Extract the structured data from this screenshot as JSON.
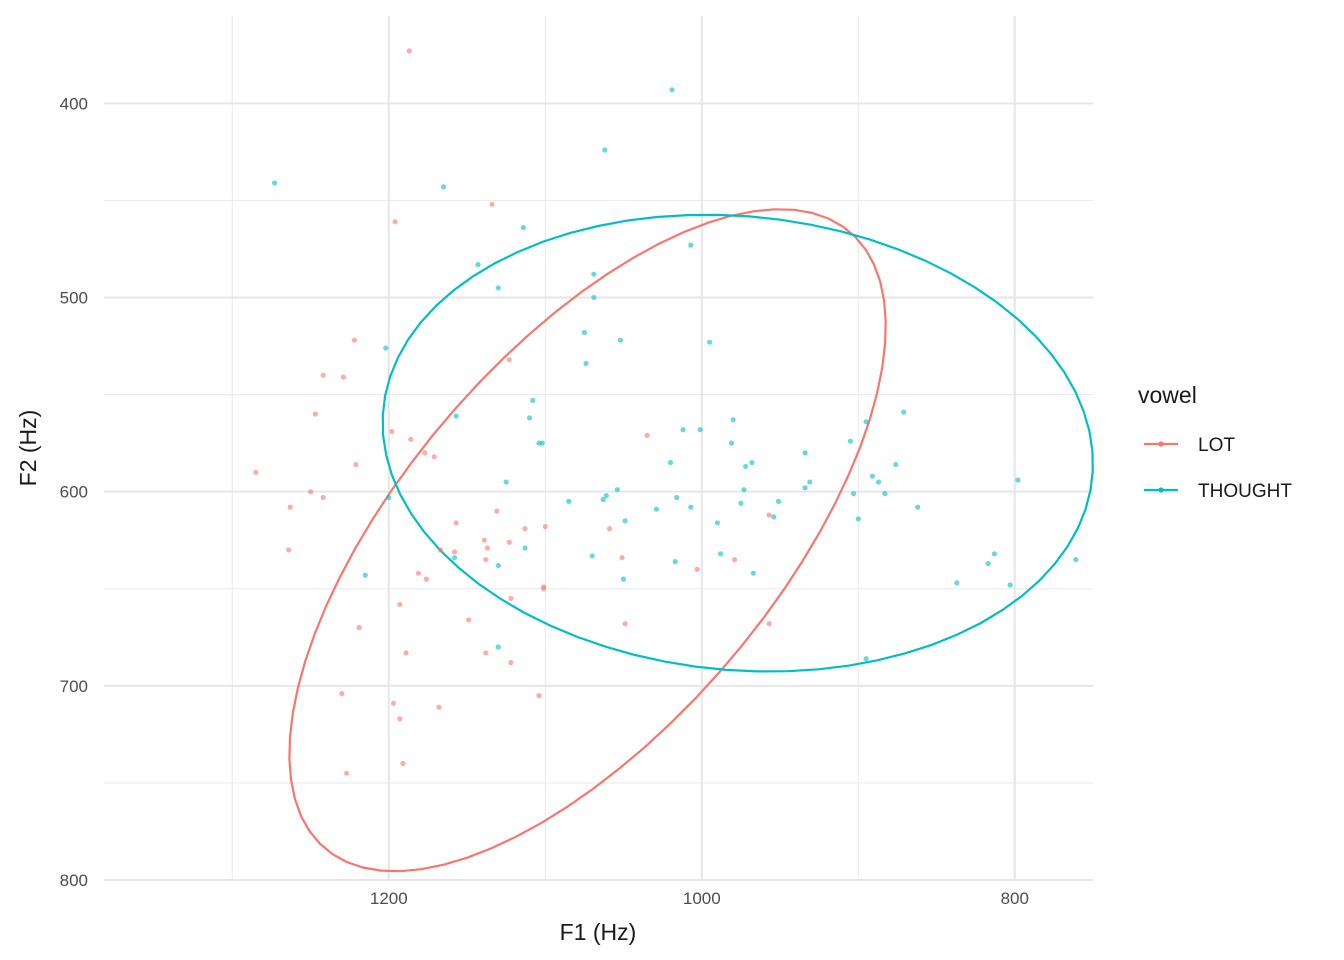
{
  "chart_data": {
    "type": "scatter",
    "xlabel": "F1 (Hz)",
    "ylabel": "F2 (Hz)",
    "x_reversed": true,
    "y_reversed": true,
    "xlim": [
      1382,
      750
    ],
    "ylim": [
      355,
      800
    ],
    "x_ticks": [
      1200,
      1000,
      800
    ],
    "y_ticks": [
      400,
      500,
      600,
      700,
      800
    ],
    "grid": true,
    "legend": {
      "title": "vowel",
      "position": "right"
    },
    "series": [
      {
        "name": "LOT",
        "color": "#F8766D",
        "points": [
          [
            1187,
            373
          ],
          [
            1134,
            452
          ],
          [
            1196,
            461
          ],
          [
            1123,
            532
          ],
          [
            1222,
            522
          ],
          [
            1242,
            540
          ],
          [
            1229,
            541
          ],
          [
            1247,
            560
          ],
          [
            1198,
            569
          ],
          [
            1186,
            573
          ],
          [
            1177,
            580
          ],
          [
            1171,
            582
          ],
          [
            1221,
            586
          ],
          [
            1285,
            590
          ],
          [
            1250,
            600
          ],
          [
            1263,
            608
          ],
          [
            1242,
            603
          ],
          [
            1131,
            610
          ],
          [
            1157,
            616
          ],
          [
            1113,
            619
          ],
          [
            1100,
            618
          ],
          [
            1035,
            571
          ],
          [
            1059,
            619
          ],
          [
            1139,
            625
          ],
          [
            1123,
            626
          ],
          [
            1137,
            629
          ],
          [
            1167,
            630
          ],
          [
            1158,
            631
          ],
          [
            1264,
            630
          ],
          [
            1138,
            635
          ],
          [
            1051,
            634
          ],
          [
            1003,
            640
          ],
          [
            1176,
            645
          ],
          [
            1181,
            642
          ],
          [
            1193,
            658
          ],
          [
            1122,
            655
          ],
          [
            1101,
            649
          ],
          [
            1101,
            650
          ],
          [
            1049,
            668
          ],
          [
            1149,
            666
          ],
          [
            1219,
            670
          ],
          [
            1189,
            683
          ],
          [
            1138,
            683
          ],
          [
            1122,
            688
          ],
          [
            1230,
            704
          ],
          [
            1104,
            705
          ],
          [
            1197,
            709
          ],
          [
            1193,
            717
          ],
          [
            1168,
            711
          ],
          [
            1191,
            740
          ],
          [
            1227,
            745
          ],
          [
            957,
            612
          ],
          [
            979,
            635
          ],
          [
            957,
            668
          ]
        ],
        "ellipse": {
          "center": [
            1073,
            625
          ],
          "semi_axes": [
            232.4,
            106.7
          ],
          "angle_deg": 40.1
        }
      },
      {
        "name": "THOUGHT",
        "color": "#00BFC4",
        "points": [
          [
            1019,
            393
          ],
          [
            1062,
            424
          ],
          [
            1273,
            441
          ],
          [
            1165,
            443
          ],
          [
            1114,
            464
          ],
          [
            1007,
            473
          ],
          [
            1143,
            483
          ],
          [
            1069,
            488
          ],
          [
            1130,
            495
          ],
          [
            1069,
            500
          ],
          [
            1075,
            518
          ],
          [
            1202,
            526
          ],
          [
            1052,
            522
          ],
          [
            995,
            523
          ],
          [
            1074,
            534
          ],
          [
            1108,
            553
          ],
          [
            1110,
            562
          ],
          [
            1157,
            561
          ],
          [
            1104,
            575
          ],
          [
            1102,
            575
          ],
          [
            1012,
            568
          ],
          [
            1001,
            568
          ],
          [
            980,
            563
          ],
          [
            981,
            575
          ],
          [
            972,
            587
          ],
          [
            968,
            585
          ],
          [
            934,
            580
          ],
          [
            905,
            574
          ],
          [
            895,
            564
          ],
          [
            871,
            559
          ],
          [
            876,
            586
          ],
          [
            891,
            592
          ],
          [
            903,
            601
          ],
          [
            887,
            595
          ],
          [
            883,
            601
          ],
          [
            934,
            598
          ],
          [
            931,
            595
          ],
          [
            1020,
            585
          ],
          [
            1125,
            595
          ],
          [
            1085,
            605
          ],
          [
            1061,
            602
          ],
          [
            1063,
            604
          ],
          [
            1054,
            599
          ],
          [
            1049,
            615
          ],
          [
            1029,
            609
          ],
          [
            1016,
            603
          ],
          [
            1007,
            608
          ],
          [
            990,
            616
          ],
          [
            973,
            599
          ],
          [
            975,
            606
          ],
          [
            951,
            605
          ],
          [
            954,
            613
          ],
          [
            900,
            614
          ],
          [
            862,
            608
          ],
          [
            798,
            594
          ],
          [
            1200,
            603
          ],
          [
            1158,
            634
          ],
          [
            1130,
            638
          ],
          [
            1113,
            629
          ],
          [
            1070,
            633
          ],
          [
            1050,
            645
          ],
          [
            1017,
            636
          ],
          [
            988,
            632
          ],
          [
            967,
            642
          ],
          [
            1215,
            643
          ],
          [
            1130,
            680
          ],
          [
            895,
            686
          ],
          [
            837,
            647
          ],
          [
            817,
            637
          ],
          [
            813,
            632
          ],
          [
            803,
            648
          ],
          [
            761,
            635
          ]
        ],
        "ellipse": {
          "center": [
            977,
            575
          ],
          "semi_axes": [
            227.3,
            117.0
          ],
          "angle_deg": -3.6
        }
      }
    ]
  }
}
